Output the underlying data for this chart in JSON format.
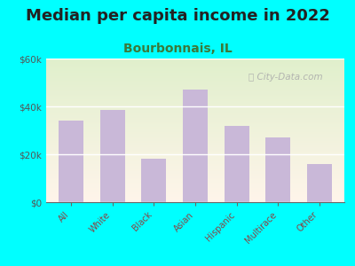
{
  "title": "Median per capita income in 2022",
  "subtitle": "Bourbonnais, IL",
  "categories": [
    "All",
    "White",
    "Black",
    "Asian",
    "Hispanic",
    "Multirace",
    "Other"
  ],
  "values": [
    34000,
    38500,
    18000,
    47000,
    32000,
    27000,
    16000
  ],
  "bar_color": "#c9b8d8",
  "figure_bg": "#00ffff",
  "title_color": "#222222",
  "subtitle_color": "#3a7a3a",
  "tick_color": "#555555",
  "xtick_color": "#884444",
  "ylim": [
    0,
    60000
  ],
  "yticks": [
    0,
    20000,
    40000,
    60000
  ],
  "ytick_labels": [
    "$0",
    "$20k",
    "$40k",
    "$60k"
  ],
  "watermark": "City-Data.com",
  "title_fontsize": 13,
  "subtitle_fontsize": 10,
  "tick_fontsize": 7.5,
  "xtick_fontsize": 7
}
